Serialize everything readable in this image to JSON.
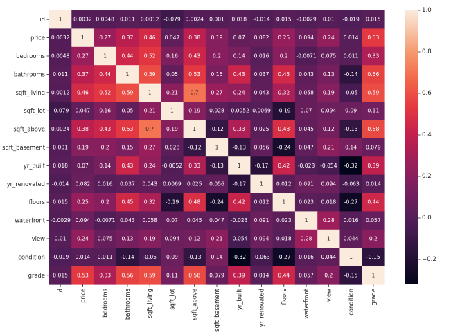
{
  "chart_data": {
    "type": "heatmap",
    "title": "",
    "xlabel": "",
    "ylabel": "",
    "labels": [
      "id",
      "price",
      "bedrooms",
      "bathrooms",
      "sqft_living",
      "sqft_lot",
      "sqft_above",
      "sqft_basement",
      "yr_built",
      "yr_renovated",
      "floors",
      "waterfront",
      "view",
      "condition",
      "grade"
    ],
    "values": [
      [
        1,
        0.0032,
        0.0048,
        0.011,
        0.0012,
        -0.079,
        0.0024,
        0.001,
        0.018,
        -0.014,
        0.015,
        -0.0029,
        0.01,
        -0.019,
        0.015
      ],
      [
        0.0032,
        1,
        0.27,
        0.37,
        0.46,
        0.047,
        0.38,
        0.19,
        0.07,
        0.082,
        0.25,
        0.094,
        0.24,
        0.014,
        0.53
      ],
      [
        0.0048,
        0.27,
        1,
        0.44,
        0.52,
        0.16,
        0.43,
        0.2,
        0.14,
        0.016,
        0.2,
        -0.0071,
        0.075,
        0.011,
        0.33
      ],
      [
        0.011,
        0.37,
        0.44,
        1,
        0.59,
        0.05,
        0.53,
        0.15,
        0.43,
        0.037,
        0.45,
        0.043,
        0.13,
        -0.14,
        0.56
      ],
      [
        0.0012,
        0.46,
        0.52,
        0.59,
        1,
        0.21,
        0.7,
        0.27,
        0.24,
        0.043,
        0.32,
        0.058,
        0.19,
        -0.05,
        0.59
      ],
      [
        -0.079,
        0.047,
        0.16,
        0.05,
        0.21,
        1,
        0.19,
        0.028,
        -0.0052,
        0.0069,
        -0.19,
        0.07,
        0.094,
        0.09,
        0.11
      ],
      [
        0.0024,
        0.38,
        0.43,
        0.53,
        0.7,
        0.19,
        1,
        -0.12,
        0.33,
        0.025,
        0.48,
        0.045,
        0.12,
        -0.13,
        0.58
      ],
      [
        0.001,
        0.19,
        0.2,
        0.15,
        0.27,
        0.028,
        -0.12,
        1,
        -0.13,
        0.056,
        -0.24,
        0.047,
        0.21,
        0.14,
        0.079
      ],
      [
        0.018,
        0.07,
        0.14,
        0.43,
        0.24,
        -0.0052,
        0.33,
        -0.13,
        1,
        -0.17,
        0.42,
        -0.023,
        -0.054,
        -0.32,
        0.39
      ],
      [
        -0.014,
        0.082,
        0.016,
        0.037,
        0.043,
        0.0069,
        0.025,
        0.056,
        -0.17,
        1,
        0.012,
        0.091,
        0.094,
        -0.063,
        0.014
      ],
      [
        0.015,
        0.25,
        0.2,
        0.45,
        0.32,
        -0.19,
        0.48,
        -0.24,
        0.42,
        0.012,
        1,
        0.023,
        0.018,
        -0.27,
        0.44
      ],
      [
        -0.0029,
        0.094,
        -0.0071,
        0.043,
        0.058,
        0.07,
        0.045,
        0.047,
        -0.023,
        0.091,
        0.023,
        1,
        0.28,
        0.016,
        0.057
      ],
      [
        0.01,
        0.24,
        0.075,
        0.13,
        0.19,
        0.094,
        0.12,
        0.21,
        -0.054,
        0.094,
        0.018,
        0.28,
        1,
        0.044,
        0.2
      ],
      [
        -0.019,
        0.014,
        0.011,
        -0.14,
        -0.05,
        0.09,
        -0.13,
        0.14,
        -0.32,
        -0.063,
        -0.27,
        0.016,
        0.044,
        1,
        -0.15
      ],
      [
        0.015,
        0.53,
        0.33,
        0.56,
        0.59,
        0.11,
        0.58,
        0.079,
        0.39,
        0.014,
        0.44,
        0.057,
        0.2,
        -0.15,
        1
      ]
    ],
    "value_range": [
      -0.32,
      1.0
    ],
    "colormap": "rocket",
    "colorbar": {
      "ticks": [
        -0.2,
        0.0,
        0.2,
        0.4,
        0.6,
        0.8,
        1.0
      ],
      "tick_labels": [
        "−0.2",
        "0.0",
        "0.2",
        "0.4",
        "0.6",
        "0.8",
        "1.0"
      ],
      "placement": "right"
    },
    "grid": false,
    "annotated": true
  }
}
